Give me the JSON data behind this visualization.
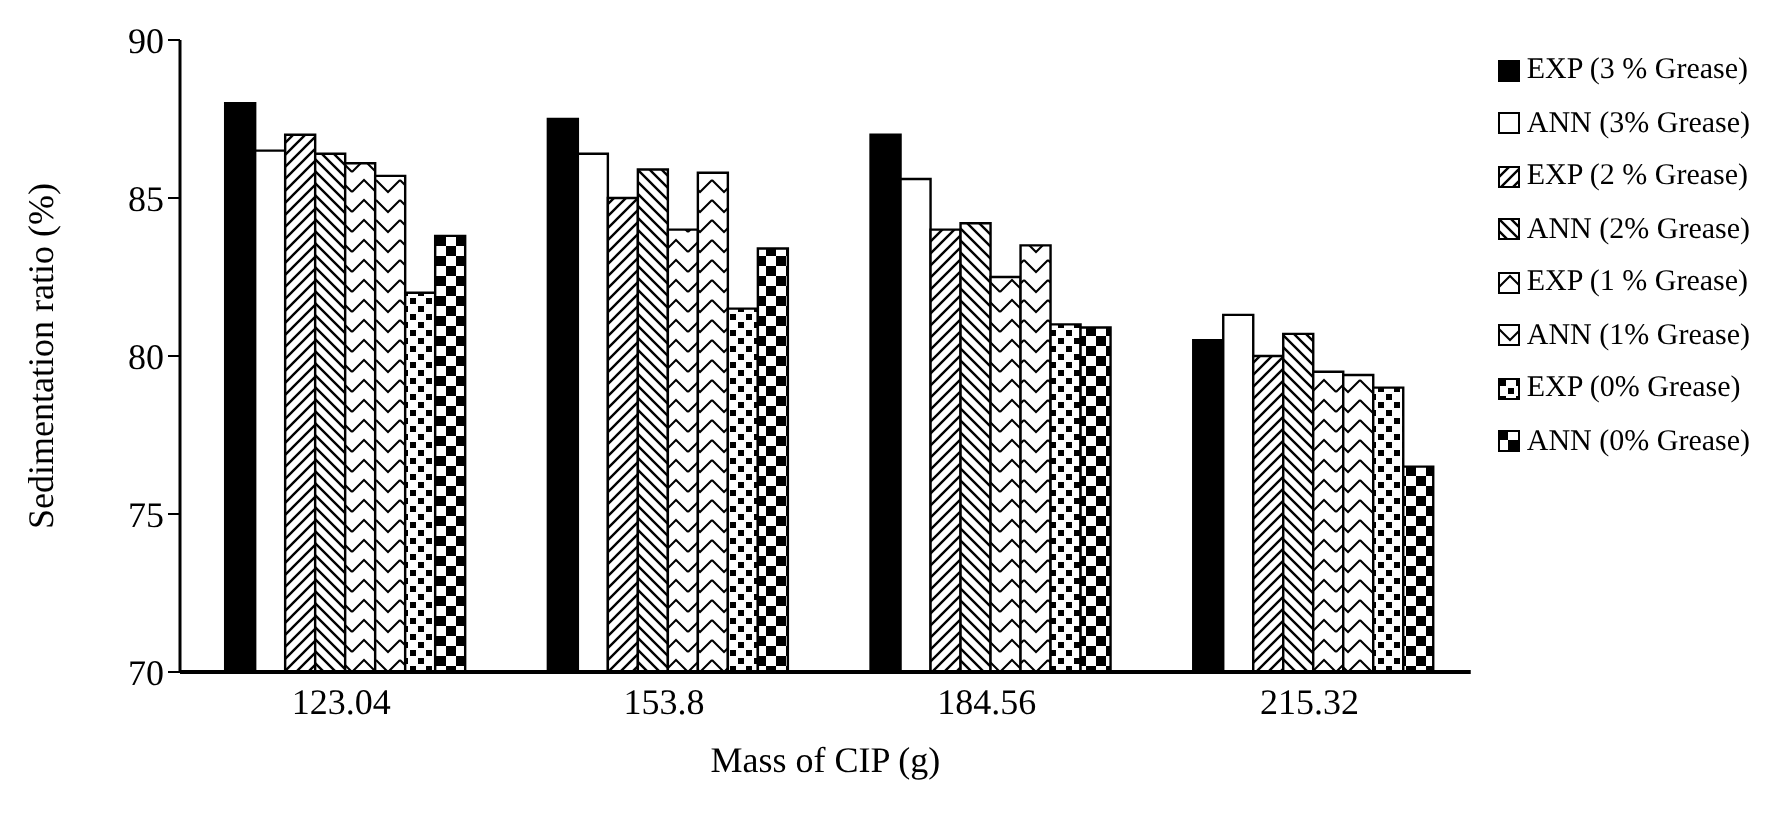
{
  "chart_data": {
    "type": "bar",
    "xlabel": "Mass of CIP (g)",
    "ylabel": "Sedimentation ratio (%)",
    "categories": [
      "123.04",
      "153.8",
      "184.56",
      "215.32"
    ],
    "series": [
      {
        "name": "EXP (3 % Grease)",
        "color": "#000000",
        "values": [
          88.0,
          87.5,
          87.0,
          80.5
        ]
      },
      {
        "name": "ANN (3% Grease)",
        "color": "#ffffff",
        "values": [
          86.5,
          86.4,
          85.6,
          81.3
        ]
      },
      {
        "name": "EXP (2 % Grease)",
        "color": "#000000",
        "values": [
          87.0,
          85.0,
          84.0,
          80.0
        ]
      },
      {
        "name": "ANN (2% Grease)",
        "color": "#000000",
        "values": [
          86.4,
          85.9,
          84.2,
          80.7
        ]
      },
      {
        "name": "EXP (1 % Grease)",
        "color": "#000000",
        "values": [
          86.1,
          84.0,
          82.5,
          79.5
        ]
      },
      {
        "name": "ANN (1% Grease)",
        "color": "#000000",
        "values": [
          85.7,
          85.8,
          83.5,
          79.4
        ]
      },
      {
        "name": "EXP (0% Grease)",
        "color": "#000000",
        "values": [
          82.0,
          81.5,
          81.0,
          79.0
        ]
      },
      {
        "name": "ANN (0% Grease)",
        "color": "#000000",
        "values": [
          83.8,
          83.4,
          80.9,
          76.5
        ]
      }
    ],
    "ylim": [
      70,
      90
    ],
    "yticks": [
      70,
      75,
      80,
      85,
      90
    ],
    "grid": false,
    "legend": "top right"
  }
}
